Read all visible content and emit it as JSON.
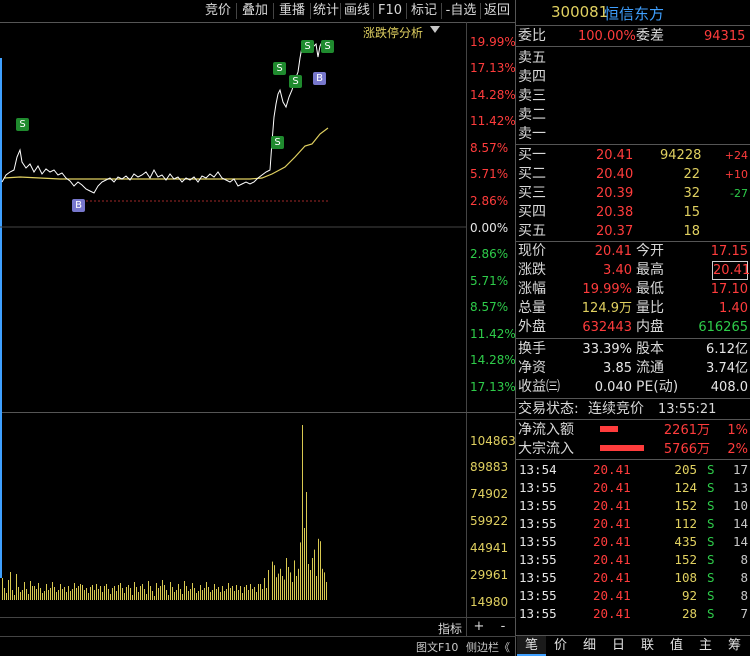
{
  "toolbar": {
    "buttons": [
      "竞价",
      "叠加",
      "重播",
      "统计",
      "画线",
      "F10",
      "标记",
      "-自选",
      "返回"
    ]
  },
  "chart": {
    "analysis_label": "涨跌停分析",
    "price_axis_up": [
      "19.99%",
      "17.13%",
      "14.28%",
      "11.42%",
      "8.57%",
      "5.71%",
      "2.86%"
    ],
    "price_axis_zero": "0.00%",
    "price_axis_down": [
      "2.86%",
      "5.71%",
      "8.57%",
      "11.42%",
      "14.28%",
      "17.13%"
    ],
    "volume_axis": [
      "104863",
      "89883",
      "74902",
      "59922",
      "44941",
      "29961",
      "14980"
    ],
    "markers": [
      "S",
      "S",
      "S",
      "S",
      "S",
      "S",
      "B",
      "B"
    ],
    "bottom_label": "指标",
    "plus": "+",
    "minus": "-",
    "status_left": "图文F10",
    "status_right": "侧边栏《"
  },
  "stock": {
    "code": "300081",
    "name": "恒信东方",
    "weibi_label": "委比",
    "weibi_value": "100.00%",
    "weicha_label": "委差",
    "weicha_value": "94315"
  },
  "asks": [
    {
      "label": "卖五",
      "price": "",
      "vol": ""
    },
    {
      "label": "卖四",
      "price": "",
      "vol": ""
    },
    {
      "label": "卖三",
      "price": "",
      "vol": ""
    },
    {
      "label": "卖二",
      "price": "",
      "vol": ""
    },
    {
      "label": "卖一",
      "price": "",
      "vol": ""
    }
  ],
  "bids": [
    {
      "label": "买一",
      "price": "20.41",
      "vol": "94228",
      "chg": "+24"
    },
    {
      "label": "买二",
      "price": "20.40",
      "vol": "22",
      "chg": "+10"
    },
    {
      "label": "买三",
      "price": "20.39",
      "vol": "32",
      "chg": "-27"
    },
    {
      "label": "买四",
      "price": "20.38",
      "vol": "15",
      "chg": ""
    },
    {
      "label": "买五",
      "price": "20.37",
      "vol": "18",
      "chg": ""
    }
  ],
  "quote": [
    {
      "l1": "现价",
      "v1": "20.41",
      "l2": "今开",
      "v2": "17.15"
    },
    {
      "l1": "涨跌",
      "v1": "3.40",
      "l2": "最高",
      "v2": "20.41"
    },
    {
      "l1": "涨幅",
      "v1": "19.99%",
      "l2": "最低",
      "v2": "17.10"
    },
    {
      "l1": "总量",
      "v1": "124.9万",
      "l2": "量比",
      "v2": "1.40"
    },
    {
      "l1": "外盘",
      "v1": "632443",
      "l2": "内盘",
      "v2": "616265"
    }
  ],
  "fund": [
    {
      "l1": "换手",
      "v1": "33.39%",
      "l2": "股本",
      "v2": "6.12亿"
    },
    {
      "l1": "净资",
      "v1": "3.85",
      "l2": "流通",
      "v2": "3.74亿"
    },
    {
      "l1": "收益㈢",
      "v1": "0.040",
      "l2": "PE(动)",
      "v2": "408.0"
    }
  ],
  "trade_status": {
    "label": "交易状态:",
    "value": "连续竞价",
    "time": "13:55:21"
  },
  "flows": [
    {
      "label": "净流入额",
      "value": "2261万",
      "pct": "1%"
    },
    {
      "label": "大宗流入",
      "value": "5766万",
      "pct": "2%"
    }
  ],
  "ticks": [
    {
      "time": "13:54",
      "price": "20.41",
      "vol": "205",
      "side": "S",
      "n": "17"
    },
    {
      "time": "13:55",
      "price": "20.41",
      "vol": "124",
      "side": "S",
      "n": "13"
    },
    {
      "time": "13:55",
      "price": "20.41",
      "vol": "152",
      "side": "S",
      "n": "10"
    },
    {
      "time": "13:55",
      "price": "20.41",
      "vol": "112",
      "side": "S",
      "n": "14"
    },
    {
      "time": "13:55",
      "price": "20.41",
      "vol": "435",
      "side": "S",
      "n": "14"
    },
    {
      "time": "13:55",
      "price": "20.41",
      "vol": "152",
      "side": "S",
      "n": "8"
    },
    {
      "time": "13:55",
      "price": "20.41",
      "vol": "108",
      "side": "S",
      "n": "8"
    },
    {
      "time": "13:55",
      "price": "20.41",
      "vol": "92",
      "side": "S",
      "n": "8"
    },
    {
      "time": "13:55",
      "price": "20.41",
      "vol": "28",
      "side": "S",
      "n": "7"
    }
  ],
  "bottom_tabs": [
    "笔",
    "价",
    "细",
    "日",
    "联",
    "值",
    "主",
    "筹"
  ],
  "colors": {
    "up": "#ff3c3c",
    "down": "#2ecc4a",
    "accent": "#3fa0ff",
    "yellow": "#e0d060"
  }
}
